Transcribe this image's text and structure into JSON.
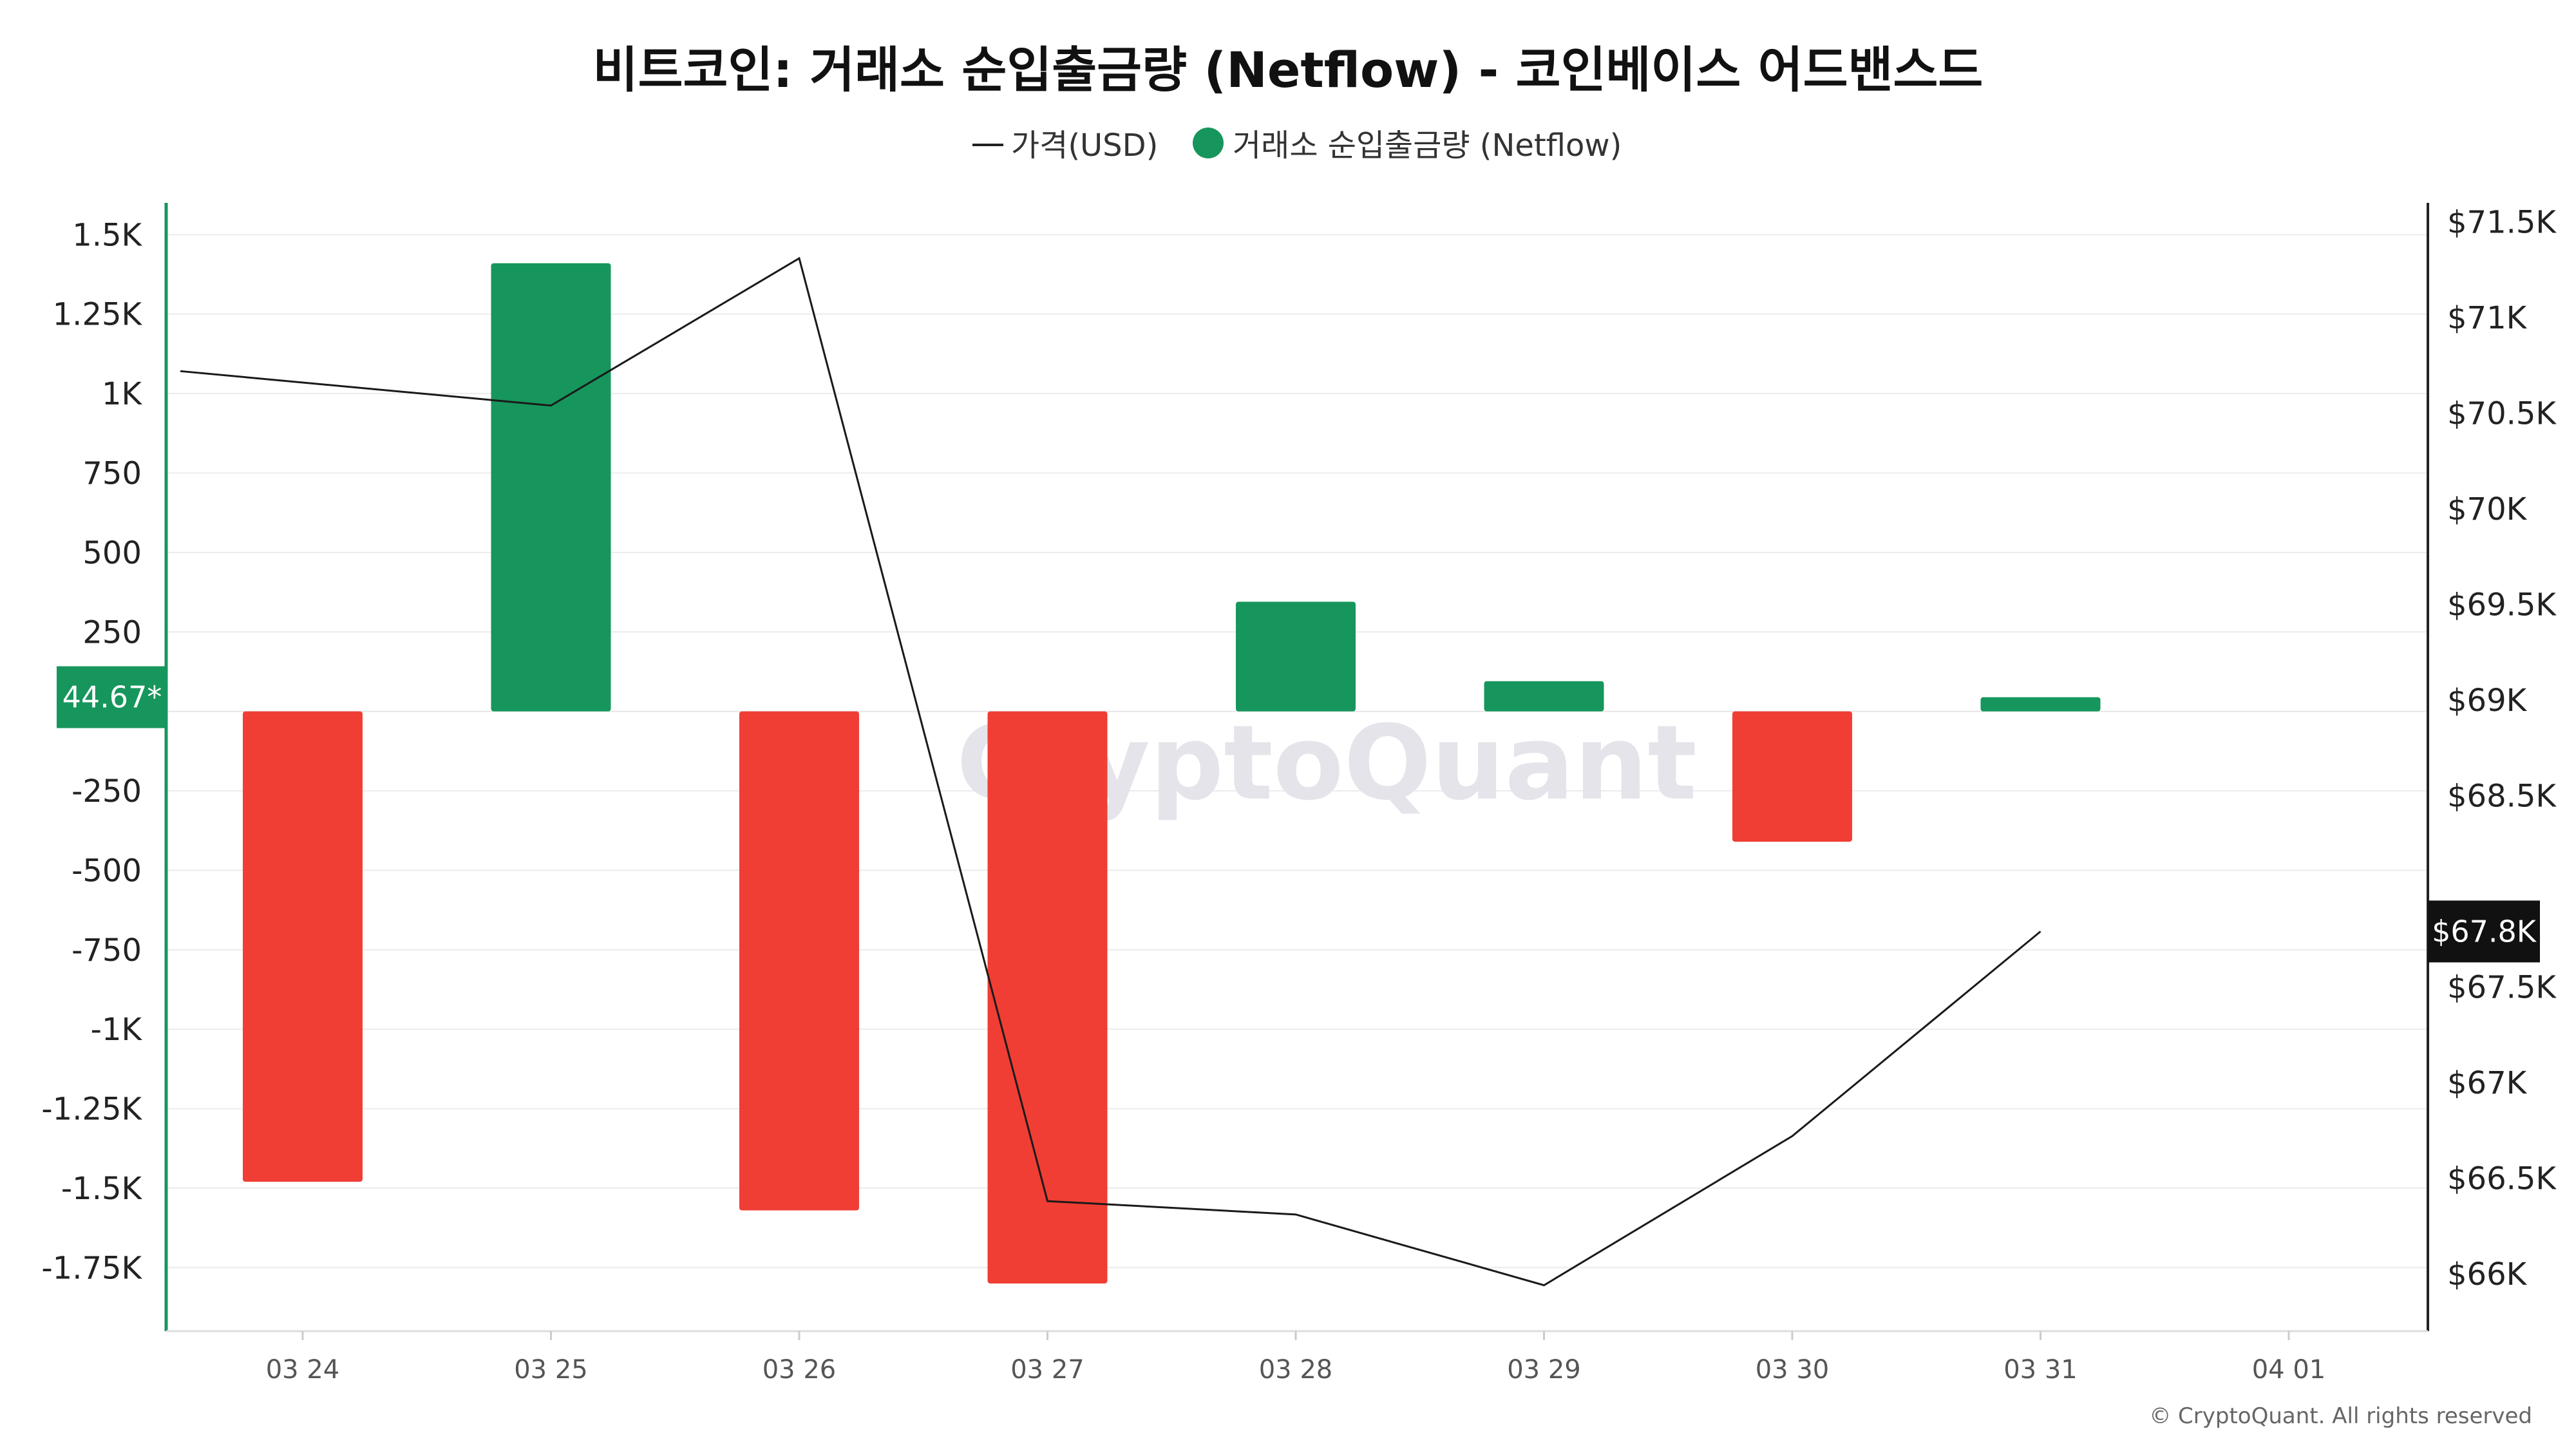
{
  "chart_data": {
    "type": "bar",
    "title": "비트코인: 거래소 순입출금량 (Netflow) - 코인베이스 어드밴스드",
    "legend": [
      {
        "label": "가격(USD)",
        "symbol": "line",
        "color": "#222222"
      },
      {
        "label": "거래소 순입출금량 (Netflow)",
        "symbol": "dot",
        "color": "#16965c"
      }
    ],
    "legend_position": "top-center",
    "x_ticks": [
      "03 24",
      "03 25",
      "03 26",
      "03 27",
      "03 28",
      "03 29",
      "03 30",
      "03 31",
      "04 01"
    ],
    "categories": [
      "03 24",
      "03 25",
      "03 26",
      "03 27",
      "03 28",
      "03 29",
      "03 30",
      "03 31"
    ],
    "series": [
      {
        "name": "거래소 순입출금량 (Netflow)",
        "axis": "left",
        "type": "bar",
        "values": [
          -1480,
          1410,
          -1570,
          -1800,
          345,
          95,
          -410,
          44.67
        ]
      },
      {
        "name": "가격(USD)",
        "axis": "right",
        "type": "line",
        "values": [
          70720,
          70540,
          71310,
          66380,
          66310,
          65940,
          66720,
          67790
        ]
      }
    ],
    "left_axis": {
      "ylim": [
        -1950,
        1600
      ],
      "ticks": [
        1500,
        1250,
        1000,
        750,
        500,
        250,
        -250,
        -500,
        -750,
        -1000,
        -1250,
        -1500,
        -1750
      ],
      "tick_labels": [
        "1.5K",
        "1.25K",
        "1K",
        "750",
        "500",
        "250",
        "-250",
        "-500",
        "-750",
        "-1K",
        "-1.25K",
        "-1.5K",
        "-1.75K"
      ]
    },
    "right_axis": {
      "ylim": [
        65700,
        71600
      ],
      "ticks": [
        71500,
        71000,
        70500,
        70000,
        69500,
        69000,
        68500,
        67500,
        67000,
        66500,
        66000
      ],
      "tick_labels": [
        "$71.5K",
        "$71K",
        "$70.5K",
        "$70K",
        "$69.5K",
        "$69K",
        "$68.5K",
        "$67.5K",
        "$67K",
        "$66.5K",
        "$66K"
      ]
    },
    "current_netflow_label": "44.67*",
    "current_price_label": "$67.8K",
    "positive_color": "#16965c",
    "negative_color": "#f03e34",
    "grid": "horizontal",
    "watermark": "CryptoQuant",
    "copyright": "© CryptoQuant. All rights reserved"
  }
}
